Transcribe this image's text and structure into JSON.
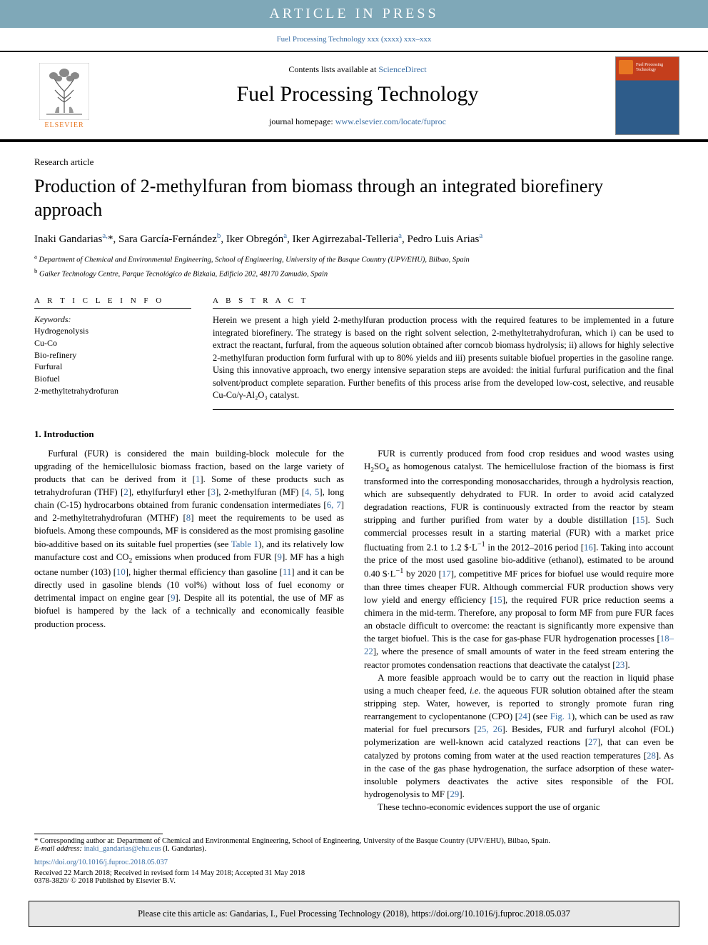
{
  "banner": {
    "text": "ARTICLE IN PRESS"
  },
  "journal_ref": {
    "text_prefix": "",
    "link_text": "Fuel Processing Technology xxx (xxxx) xxx–xxx",
    "link_color": "#3a6ea5"
  },
  "masthead": {
    "contents_prefix": "Contents lists available at ",
    "contents_link": "ScienceDirect",
    "journal_name": "Fuel Processing Technology",
    "homepage_prefix": "journal homepage: ",
    "homepage_link": "www.elsevier.com/locate/fuproc",
    "elsevier_text": "ELSEVIER",
    "cover_label": "Fuel Processing Technology"
  },
  "article": {
    "type": "Research article",
    "title": "Production of 2-methylfuran from biomass through an integrated biorefinery approach",
    "authors_html": "Inaki Gandarias<sup>a,</sup>*, Sara García-Fernández<sup>b</sup>, Iker Obregón<sup>a</sup>, Iker Agirrezabal-Telleria<sup>a</sup>, Pedro Luis Arias<sup>a</sup>",
    "affiliations": [
      {
        "label": "a",
        "text": "Department of Chemical and Environmental Engineering, School of Engineering, University of the Basque Country (UPV/EHU), Bilbao, Spain"
      },
      {
        "label": "b",
        "text": "Gaiker Technology Centre, Parque Tecnológico de Bizkaia, Edificio 202, 48170 Zamudio, Spain"
      }
    ]
  },
  "info": {
    "heading": "A R T I C L E  I N F O",
    "keywords_label": "Keywords:",
    "keywords": [
      "Hydrogenolysis",
      "Cu-Co",
      "Bio-refinery",
      "Furfural",
      "Biofuel",
      "2-methyltetrahydrofuran"
    ]
  },
  "abstract": {
    "heading": "A B S T R A C T",
    "text": "Herein we present a high yield 2-methylfuran production process with the required features to be implemented in a future integrated biorefinery. The strategy is based on the right solvent selection, 2-methyltetrahydrofuran, which i) can be used to extract the reactant, furfural, from the aqueous solution obtained after corncob biomass hydrolysis; ii) allows for highly selective 2-methylfuran production form furfural with up to 80% yields and iii) presents suitable biofuel properties in the gasoline range. Using this innovative approach, two energy intensive separation steps are avoided: the initial furfural purification and the final solvent/product complete separation. Further benefits of this process arise from the developed low-cost, selective, and reusable Cu-Co/γ-Al₂O₃ catalyst."
  },
  "body": {
    "section_title": "1. Introduction",
    "paragraphs": [
      "Furfural (FUR) is considered the main building-block molecule for the upgrading of the hemicellulosic biomass fraction, based on the large variety of products that can be derived from it [<span class='ref-link'>1</span>]. Some of these products such as tetrahydrofuran (THF) [<span class='ref-link'>2</span>], ethylfurfuryl ether [<span class='ref-link'>3</span>], 2-methylfuran (MF) [<span class='ref-link'>4, 5</span>], long chain (C-15) hydrocarbons obtained from furanic condensation intermediates [<span class='ref-link'>6, 7</span>] and 2-methyltetrahydrofuran (MTHF) [<span class='ref-link'>8</span>] meet the requirements to be used as biofuels. Among these compounds, MF is considered as the most promising gasoline bio-additive based on its suitable fuel properties (see <span class='ref-link'>Table 1</span>), and its relatively low manufacture cost and CO<sub>2</sub> emissions when produced from FUR [<span class='ref-link'>9</span>]. MF has a high octane number (103) [<span class='ref-link'>10</span>], higher thermal efficiency than gasoline [<span class='ref-link'>11</span>] and it can be directly used in gasoline blends (10 vol%) without loss of fuel economy or detrimental impact on engine gear [<span class='ref-link'>9</span>]. Despite all its potential, the use of MF as biofuel is hampered by the lack of a technically and economically feasible production process.",
      "FUR is currently produced from food crop residues and wood wastes using H<sub>2</sub>SO<sub>4</sub> as homogenous catalyst. The hemicellulose fraction of the biomass is first transformed into the corresponding monosaccharides, through a hydrolysis reaction, which are subsequently dehydrated to FUR. In order to avoid acid catalyzed degradation reactions, FUR is continuously extracted from the reactor by steam stripping and further purified from water by a double distillation [<span class='ref-link'>15</span>]. Such commercial processes result in a starting material (FUR) with a market price fluctuating from 2.1 to 1.2 $·L<sup class='ref'>−1</sup> in the 2012–2016 period [<span class='ref-link'>16</span>]. Taking into account the price of the most used gasoline bio-additive (ethanol), estimated to be around 0.40 $·L<sup class='ref'>−1</sup> by 2020 [<span class='ref-link'>17</span>], competitive MF prices for biofuel use would require more than three times cheaper FUR. Although commercial FUR production shows very low yield and energy efficiency [<span class='ref-link'>15</span>], the required FUR price reduction seems a chimera in the mid-term. Therefore, any proposal to form MF from pure FUR faces an obstacle difficult to overcome: the reactant is significantly more expensive than the target biofuel. This is the case for gas-phase FUR hydrogenation processes [<span class='ref-link'>18–22</span>], where the presence of small amounts of water in the feed stream entering the reactor promotes condensation reactions that deactivate the catalyst [<span class='ref-link'>23</span>].",
      "A more feasible approach would be to carry out the reaction in liquid phase using a much cheaper feed, <i>i.e.</i> the aqueous FUR solution obtained after the steam stripping step. Water, however, is reported to strongly promote furan ring rearrangement to cyclopentanone (CPO) [<span class='ref-link'>24</span>] (see <span class='ref-link'>Fig. 1</span>), which can be used as raw material for fuel precursors [<span class='ref-link'>25, 26</span>]. Besides, FUR and furfuryl alcohol (FOL) polymerization are well-known acid catalyzed reactions [<span class='ref-link'>27</span>], that can even be catalyzed by protons coming from water at the used reaction temperatures [<span class='ref-link'>28</span>]. As in the case of the gas phase hydrogenation, the surface adsorption of these water-insoluble polymers deactivates the active sites responsible of the FOL hydrogenolysis to MF [<span class='ref-link'>29</span>].",
      "These techno-economic evidences support the use of organic"
    ]
  },
  "footnote": {
    "corresponding": "* Corresponding author at: Department of Chemical and Environmental Engineering, School of Engineering, University of the Basque Country (UPV/EHU), Bilbao, Spain.",
    "email_label": "E-mail address: ",
    "email": "inaki_gandarias@ehu.eus",
    "email_suffix": " (I. Gandarias)."
  },
  "doi": {
    "link": "https://doi.org/10.1016/j.fuproc.2018.05.037",
    "received": "Received 22 March 2018; Received in revised form 14 May 2018; Accepted 31 May 2018",
    "copyright": "0378-3820/ © 2018 Published by Elsevier B.V."
  },
  "cite_box": {
    "text": "Please cite this article as: Gandarias, I., Fuel Processing Technology (2018), https://doi.org/10.1016/j.fuproc.2018.05.037"
  },
  "colors": {
    "banner_bg": "#7fa8b8",
    "banner_text": "#ffffff",
    "link": "#3a6ea5",
    "elsevier_orange": "#e87722",
    "cite_bg": "#e8e8e8"
  }
}
